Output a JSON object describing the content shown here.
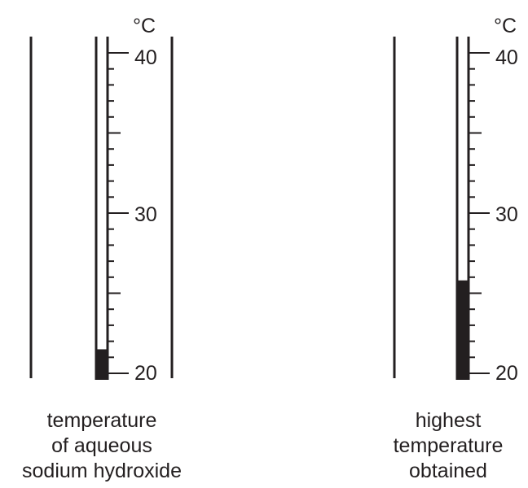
{
  "thermometers": [
    {
      "unit": "°C",
      "tick_labels": [
        "40",
        "30",
        "20"
      ],
      "scale_min": 20,
      "scale_max": 40,
      "reading": 21.5,
      "caption": [
        "temperature",
        "of aqueous",
        "sodium hydroxide"
      ]
    },
    {
      "unit": "°C",
      "tick_labels": [
        "40",
        "30",
        "20"
      ],
      "scale_min": 20,
      "scale_max": 40,
      "reading": 25.8,
      "caption": [
        "highest",
        "temperature",
        "obtained"
      ]
    }
  ],
  "colors": {
    "ink": "#231f20",
    "background": "#ffffff"
  }
}
